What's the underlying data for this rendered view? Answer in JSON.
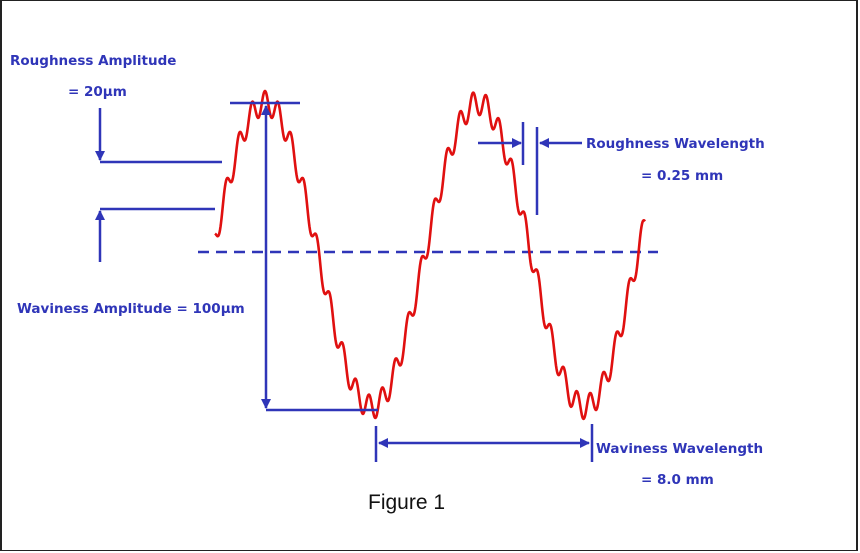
{
  "colors": {
    "annotation": "#2f35b8",
    "profile": "#e01010",
    "frame": "#222222"
  },
  "labels": {
    "roughness_amplitude_title": "Roughness Amplitude",
    "roughness_amplitude_value": "= 20µm",
    "roughness_wavelength_title": "Roughness Wavelength",
    "roughness_wavelength_value": "= 0.25 mm",
    "waviness_amplitude": "Waviness Amplitude = 100µm",
    "waviness_wavelength_title": "Waviness Wavelength",
    "waviness_wavelength_value": "= 8.0 mm"
  },
  "caption": "Figure 1"
}
